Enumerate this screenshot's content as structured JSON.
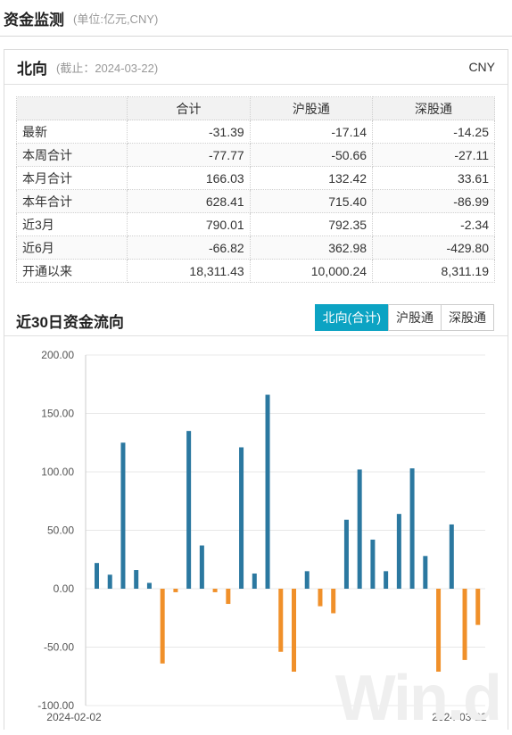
{
  "header": {
    "title": "资金监测",
    "unit": "(单位:亿元,CNY)"
  },
  "card": {
    "title": "北向",
    "date": "(截止：2024-03-22)",
    "currency": "CNY"
  },
  "table": {
    "columns": [
      "",
      "合计",
      "沪股通",
      "深股通"
    ],
    "rows": [
      {
        "label": "最新",
        "values": [
          "-31.39",
          "-17.14",
          "-14.25"
        ]
      },
      {
        "label": "本周合计",
        "values": [
          "-77.77",
          "-50.66",
          "-27.11"
        ]
      },
      {
        "label": "本月合计",
        "values": [
          "166.03",
          "132.42",
          "33.61"
        ]
      },
      {
        "label": "本年合计",
        "values": [
          "628.41",
          "715.40",
          "-86.99"
        ]
      },
      {
        "label": "近3月",
        "values": [
          "790.01",
          "792.35",
          "-2.34"
        ]
      },
      {
        "label": "近6月",
        "values": [
          "-66.82",
          "362.98",
          "-429.80"
        ]
      },
      {
        "label": "开通以来",
        "values": [
          "18,311.43",
          "10,000.24",
          "8,311.19"
        ]
      }
    ]
  },
  "chart_section": {
    "title": "近30日资金流向",
    "tabs": [
      {
        "label": "北向(合计)",
        "active": true
      },
      {
        "label": "沪股通",
        "active": false
      },
      {
        "label": "深股通",
        "active": false
      }
    ]
  },
  "chart_data": {
    "type": "bar",
    "ylim": [
      -100,
      200
    ],
    "y_ticks": [
      "200.00",
      "150.00",
      "100.00",
      "50.00",
      "0.00",
      "-50.00",
      "-100.00"
    ],
    "x_tick_labels": [
      "2024-02-02",
      "2024-03-22"
    ],
    "values": [
      22,
      12,
      125,
      16,
      5,
      -64,
      -3,
      135,
      37,
      -3,
      -13,
      121,
      13,
      166,
      -54,
      -71,
      15,
      -15,
      -21,
      59,
      102,
      42,
      15,
      64,
      103,
      28,
      -71,
      55,
      -61,
      -31
    ],
    "positive_color": "#2b78a0",
    "negative_color": "#f0902a",
    "grid": true
  },
  "watermark": "Win.d"
}
